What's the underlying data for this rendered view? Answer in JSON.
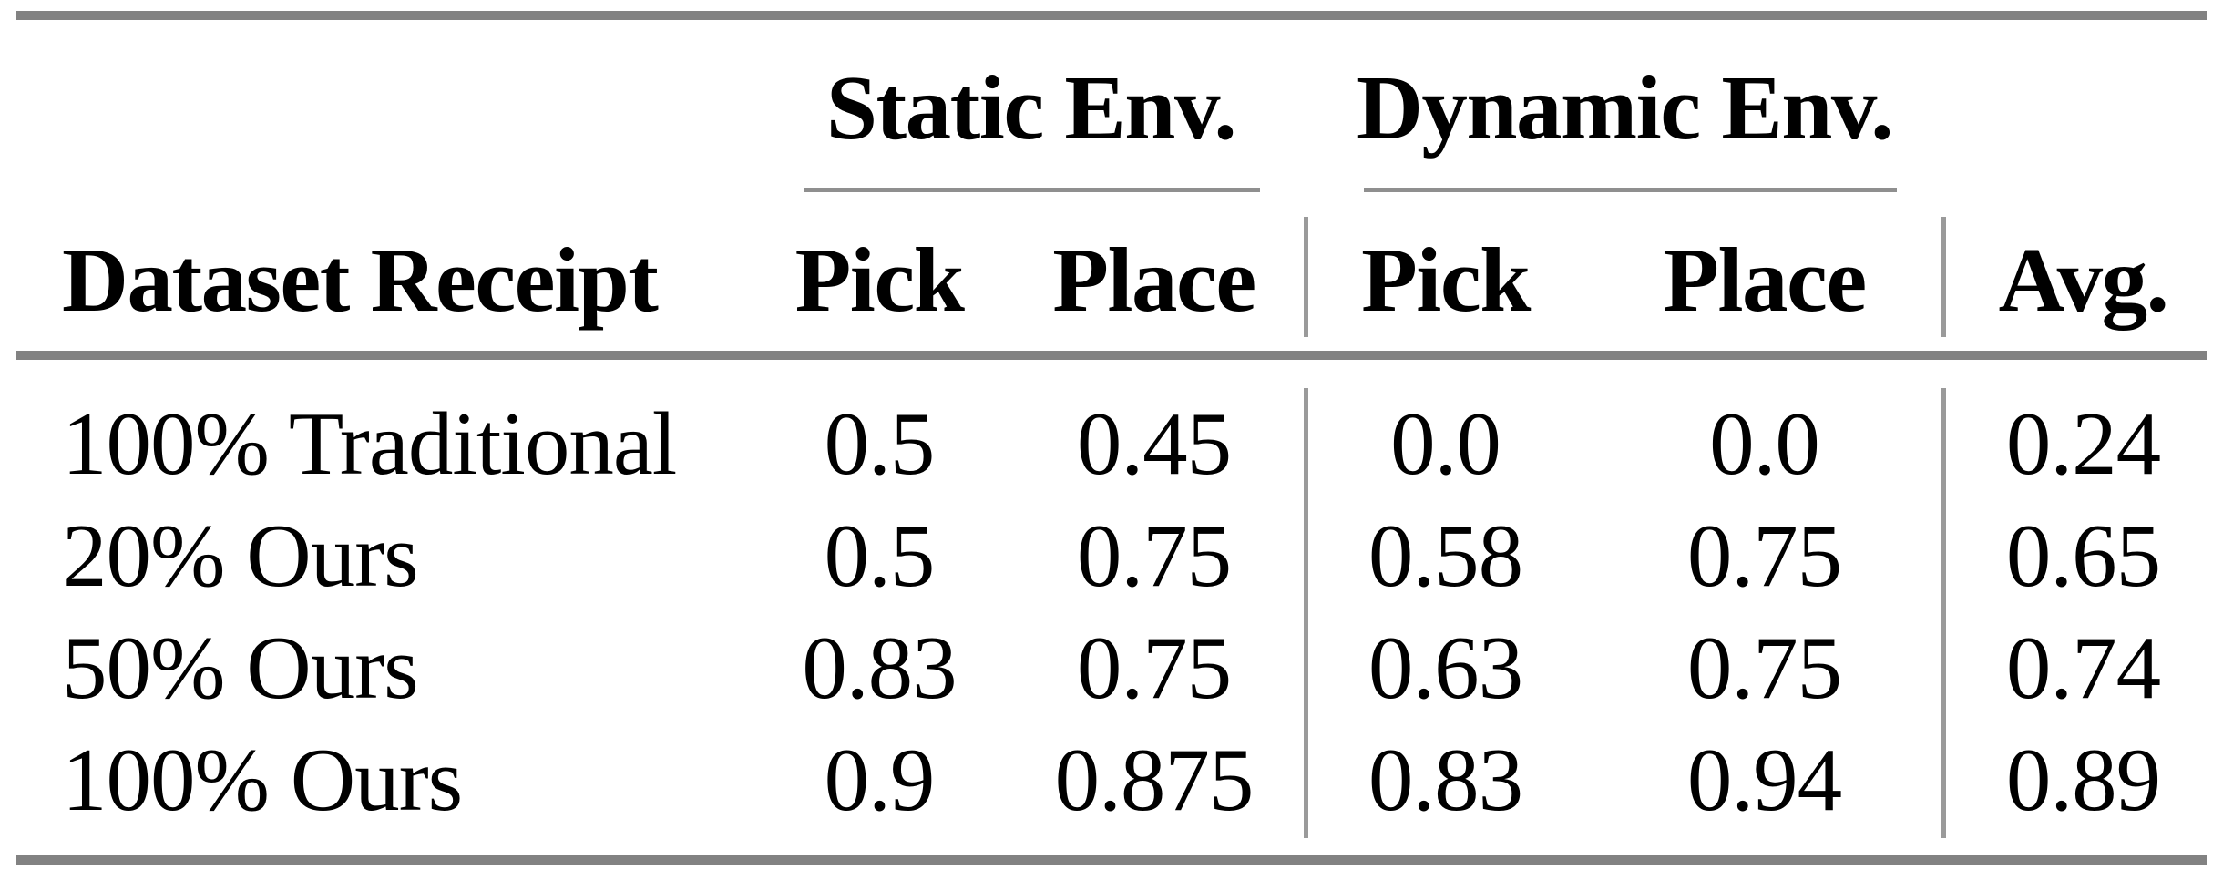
{
  "figure": {
    "group_headers": {
      "static": "Static Env.",
      "dynamic": "Dynamic Env."
    },
    "columns": {
      "row_label": "Dataset Receipt",
      "static_pick": "Pick",
      "static_place": "Place",
      "dynamic_pick": "Pick",
      "dynamic_place": "Place",
      "avg": "Avg."
    },
    "rows": [
      {
        "label": "100% Traditional",
        "static_pick": "0.5",
        "static_place": "0.45",
        "dynamic_pick": "0.0",
        "dynamic_place": "0.0",
        "avg": "0.24"
      },
      {
        "label": "20% Ours",
        "static_pick": "0.5",
        "static_place": "0.75",
        "dynamic_pick": "0.58",
        "dynamic_place": "0.75",
        "avg": "0.65"
      },
      {
        "label": "50% Ours",
        "static_pick": "0.83",
        "static_place": "0.75",
        "dynamic_pick": "0.63",
        "dynamic_place": "0.75",
        "avg": "0.74"
      },
      {
        "label": "100% Ours",
        "static_pick": "0.9",
        "static_place": "0.875",
        "dynamic_pick": "0.83",
        "dynamic_place": "0.94",
        "avg": "0.89"
      }
    ],
    "colors": {
      "thick_rule": "#828282",
      "thin_rule": "#8f8f8f",
      "divider": "#9a9a9a",
      "text": "#000000",
      "background": "#ffffff"
    }
  }
}
